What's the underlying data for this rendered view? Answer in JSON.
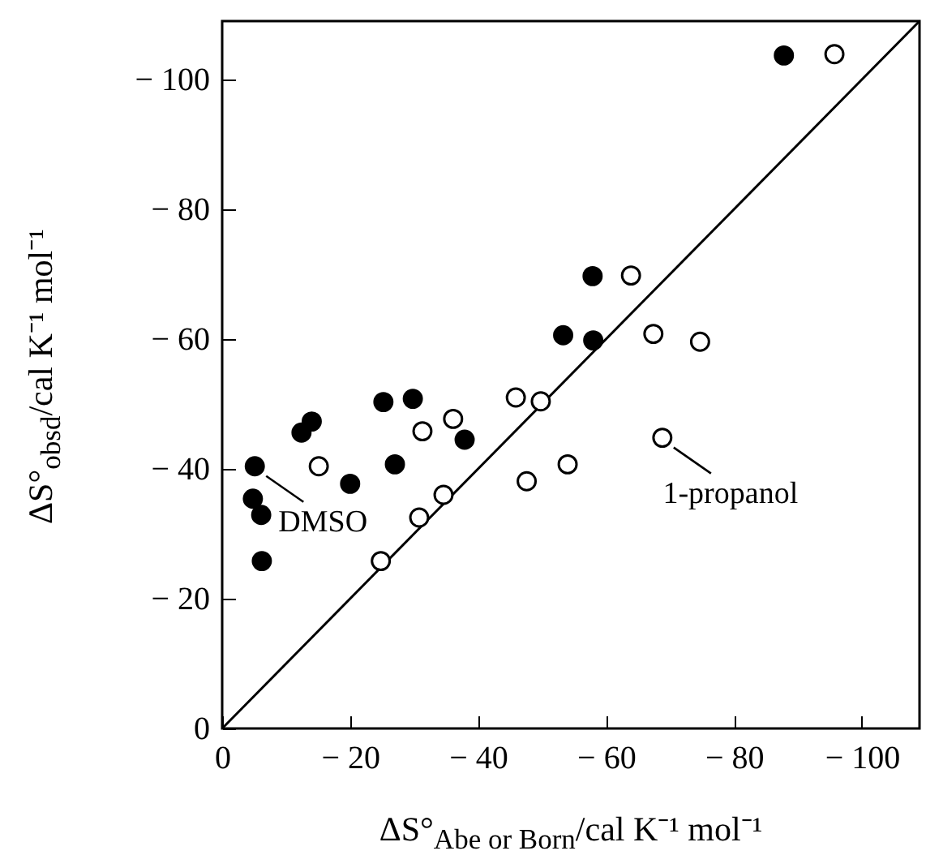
{
  "chart_data": {
    "type": "scatter",
    "xlabel": "ΔS°$_{Abe or Born}$/cal K⁻¹  mol⁻¹",
    "ylabel": "ΔS°$_{obsd}$/cal K⁻¹  mol⁻¹",
    "xlim": [
      0,
      -109
    ],
    "ylim": [
      0,
      -109
    ],
    "xticks": [
      0,
      {
        "value": -20,
        "label": "− 20"
      },
      {
        "value": -40,
        "label": "− 40"
      },
      {
        "value": -60,
        "label": "− 60"
      },
      {
        "value": -80,
        "label": "− 80"
      },
      {
        "value": -100,
        "label": "− 100"
      }
    ],
    "yticks": [
      0,
      {
        "value": -20,
        "label": "− 20"
      },
      {
        "value": -40,
        "label": "− 40"
      },
      {
        "value": -60,
        "label": "− 60"
      },
      {
        "value": -80,
        "label": "− 80"
      },
      {
        "value": -100,
        "label": "− 100"
      }
    ],
    "marker": "circle",
    "grid": false,
    "series": [
      {
        "type": "line",
        "color": "#000000",
        "marker": "none",
        "x": [
          0,
          -109
        ],
        "values": [
          0,
          -109
        ]
      },
      {
        "color": "#000000",
        "x": [
          -5.1,
          -4.8,
          -6.1,
          -6.2,
          -12.4,
          -14.0,
          -20.0,
          -25.2,
          -29.8,
          -27.0,
          -37.9,
          -57.9,
          -53.3,
          -58.0,
          -87.8
        ],
        "values": [
          -40.4,
          -35.4,
          -32.9,
          -25.8,
          -45.6,
          -47.3,
          -37.7,
          -50.3,
          -50.8,
          -40.7,
          -44.5,
          -69.7,
          -60.6,
          -59.8,
          -103.7
        ]
      },
      {
        "color": "#ffffff",
        "x": [
          -15.1,
          -24.8,
          -30.8,
          -34.6,
          -31.3,
          -36.1,
          -45.9,
          -49.8,
          -47.6,
          -54.0,
          -63.9,
          -67.4,
          -74.7,
          -68.8,
          -95.7
        ],
        "values": [
          -40.4,
          -25.8,
          -32.5,
          -36.0,
          -45.8,
          -47.7,
          -51.0,
          -50.4,
          -38.1,
          -40.7,
          -69.8,
          -60.8,
          -59.6,
          -44.8,
          -103.9
        ]
      }
    ],
    "annotations": [
      {
        "text": "DMSO",
        "x": -5.1,
        "y": -40.4
      },
      {
        "text": "1-propanol",
        "x": -68.8,
        "y": -44.8
      }
    ]
  }
}
